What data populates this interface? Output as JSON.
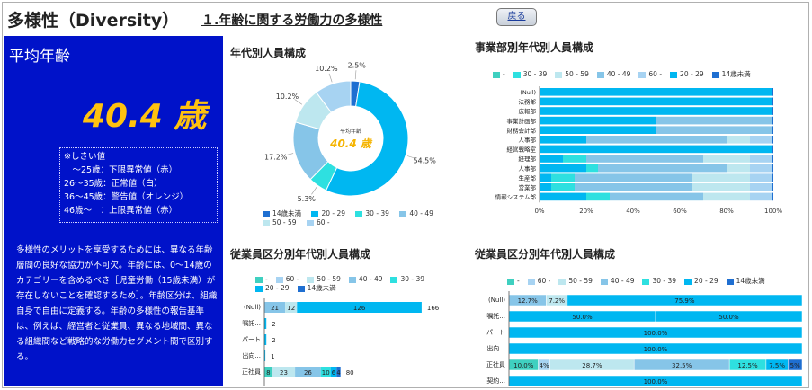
{
  "header": {
    "page_title": "多様性（Diversity）",
    "section_title": "１.年齢に関する労働力の多様性",
    "back_label": "戻る"
  },
  "left_panel": {
    "avg_label": "平均年齢",
    "avg_value": "40.4 歳",
    "thresholds": [
      "※しきい値",
      "　～25歳：下限異常値（赤）",
      "26～35歳：正常値（白）",
      "36～45歳：警告値（オレンジ）",
      "46歳～　：上限異常値（赤）"
    ],
    "description": "多様性のメリットを享受するためには、異なる年齢層間の良好な協力が不可欠。年齢には、0～14歳のカテゴリーを含めるべき［児童労働（15歳未満）が存在しないことを確認するため］。年齢区分は、組織自身で自由に定義する。年齢の多様性の報告基準は、例えば、経営者と従業員、異なる地域間、異なる組織間など戦略的な労働力セグメント間で区別する。"
  },
  "colors": {
    "c14": "#1f6fd1",
    "c20": "#00b7f1",
    "c30": "#2ee0e0",
    "c40": "#86c5e8",
    "c50": "#bde7ef",
    "c60": "#a7d3f2",
    "cnull": "#3fd0c0"
  },
  "donut": {
    "title": "年代別人員構成",
    "center_label": "平均年齢",
    "center_value": "40.4 歳",
    "legend": [
      "14歳未満",
      "20 - 29",
      "30 - 39",
      "40 - 49",
      "50 - 59",
      "60 -"
    ]
  },
  "dept_chart": {
    "title": "事業部別年代別人員構成",
    "legend": [
      "-",
      "30 - 39",
      "50 - 59",
      "40 - 49",
      "60 -",
      "20 - 29",
      "14歳未満"
    ],
    "departments": [
      "(Null)",
      "法務部",
      "広報部",
      "事業計画部",
      "財務会計部",
      "人事部",
      "経営戦略室",
      "経理部",
      "人事部",
      "生産部",
      "営業部",
      "情報システム部"
    ],
    "axis_ticks": [
      "0%",
      "20%",
      "40%",
      "60%",
      "80%",
      "100%"
    ]
  },
  "emp_count_chart": {
    "title": "従業員区分別年代別人員構成",
    "legend": [
      "-",
      "60 -",
      "50 - 59",
      "40 - 49",
      "30 - 39",
      "20 - 29",
      "14歳未満"
    ],
    "categories": [
      "(Null)",
      "嘱託...",
      "パート",
      "出向...",
      "正社員"
    ],
    "rows": [
      {
        "labels": [
          "21",
          "12",
          "126"
        ],
        "total": "166"
      },
      {
        "labels": [],
        "total": "2"
      },
      {
        "labels": [],
        "total": "2"
      },
      {
        "labels": [],
        "total": "1"
      },
      {
        "labels": [
          "8",
          "23",
          "26",
          "10",
          "6",
          "4"
        ],
        "total": "80"
      }
    ]
  },
  "emp_pct_chart": {
    "title": "従業員区分別年代別人員構成",
    "legend": [
      "-",
      "60 -",
      "50 - 59",
      "40 - 49",
      "30 - 39",
      "20 - 29",
      "14歳未満"
    ],
    "categories": [
      "(Null)",
      "嘱託...",
      "パート",
      "出向...",
      "正社員",
      "契約..."
    ],
    "rows": [
      {
        "labels": [
          "12.7%",
          "7.2%",
          "75.9%"
        ]
      },
      {
        "labels": [
          "50.0%",
          "50.0%"
        ]
      },
      {
        "labels": [
          "100.0%"
        ]
      },
      {
        "labels": [
          "100.0%"
        ]
      },
      {
        "labels": [
          "10.0%",
          "4%",
          "28.7%",
          "32.5%",
          "12.5%",
          "7.5%",
          "5%"
        ]
      },
      {
        "labels": [
          "100.0%"
        ]
      }
    ]
  },
  "chart_data": [
    {
      "type": "pie",
      "title": "年代別人員構成",
      "categories": [
        "14歳未満",
        "20 - 29",
        "30 - 39",
        "40 - 49",
        "50 - 59",
        "60 -"
      ],
      "values": [
        2.5,
        54.5,
        5.3,
        17.2,
        10.2,
        10.2
      ]
    },
    {
      "type": "bar",
      "title": "事業部別年代別人員構成",
      "categories": [
        "(Null)",
        "法務部",
        "広報部",
        "事業計画部",
        "財務会計部",
        "人事部",
        "経営戦略室",
        "経理部",
        "人事部",
        "生産部",
        "営業部",
        "情報システム部"
      ],
      "series": [
        {
          "name": "20 - 29",
          "values": [
            100,
            100,
            100,
            50,
            50,
            20,
            100,
            10,
            20,
            5,
            5,
            20
          ]
        },
        {
          "name": "30 - 39",
          "values": [
            0,
            0,
            0,
            0,
            0,
            0,
            0,
            10,
            5,
            10,
            10,
            10
          ]
        },
        {
          "name": "40 - 49",
          "values": [
            0,
            0,
            0,
            50,
            50,
            60,
            0,
            50,
            55,
            50,
            50,
            40
          ]
        },
        {
          "name": "50 - 59",
          "values": [
            0,
            0,
            0,
            0,
            0,
            10,
            0,
            20,
            10,
            25,
            25,
            20
          ]
        },
        {
          "name": "60 -",
          "values": [
            0,
            0,
            0,
            0,
            0,
            10,
            0,
            10,
            10,
            10,
            10,
            10
          ]
        }
      ],
      "ylim": [
        0,
        100
      ]
    },
    {
      "type": "bar",
      "title": "従業員区分別年代別人員構成",
      "categories": [
        "(Null)",
        "嘱託...",
        "パート",
        "出向...",
        "正社員"
      ],
      "totals": [
        166,
        2,
        2,
        1,
        80
      ],
      "segment_labels": [
        [
          21,
          12,
          126
        ],
        [],
        [],
        [],
        [
          8,
          23,
          26,
          10,
          6,
          4
        ]
      ]
    },
    {
      "type": "bar",
      "title": "従業員区分別年代別人員構成",
      "categories": [
        "(Null)",
        "嘱託...",
        "パート",
        "出向...",
        "正社員",
        "契約..."
      ],
      "segment_labels": [
        [
          "12.7%",
          "7.2%",
          "75.9%"
        ],
        [
          "50.0%",
          "50.0%"
        ],
        [
          "100.0%"
        ],
        [
          "100.0%"
        ],
        [
          "10.0%",
          "4%",
          "28.7%",
          "32.5%",
          "12.5%",
          "7.5%",
          "5%"
        ],
        [
          "100.0%"
        ]
      ]
    }
  ]
}
